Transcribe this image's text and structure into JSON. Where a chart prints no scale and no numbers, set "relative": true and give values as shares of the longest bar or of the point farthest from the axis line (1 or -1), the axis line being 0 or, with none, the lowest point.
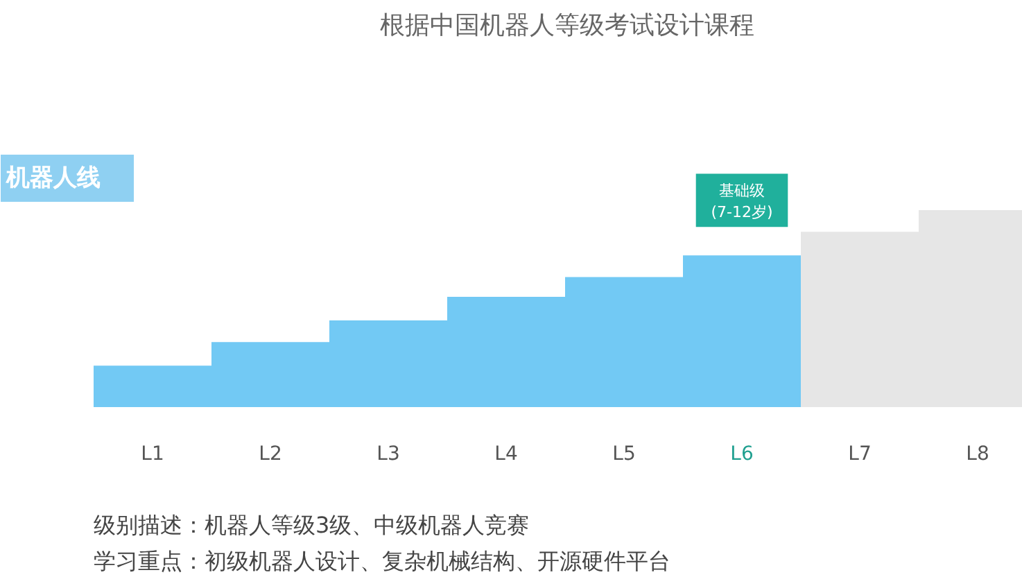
{
  "chart_data": {
    "type": "bar",
    "relative": true,
    "title": "根据中国机器人等级考试设计课程",
    "categories": [
      "L1",
      "L2",
      "L3",
      "L4",
      "L5",
      "L6",
      "L7",
      "L8"
    ],
    "values": [
      0.21,
      0.33,
      0.44,
      0.56,
      0.66,
      0.77,
      0.89,
      1.0
    ],
    "colors": [
      "#72c9f4",
      "#72c9f4",
      "#72c9f4",
      "#72c9f4",
      "#72c9f4",
      "#72c9f4",
      "#e6e6e6",
      "#e6e6e6"
    ],
    "annotations": [
      {
        "text": "基础级\n(7-12岁)",
        "x": "L6",
        "y": 0.77
      },
      "机器人线",
      "级别描述：机器人等级3级、中级机器人竞赛",
      "学习重点：初级机器人设计、复杂机械结构、开源硬件平台"
    ],
    "grid": false
  }
}
